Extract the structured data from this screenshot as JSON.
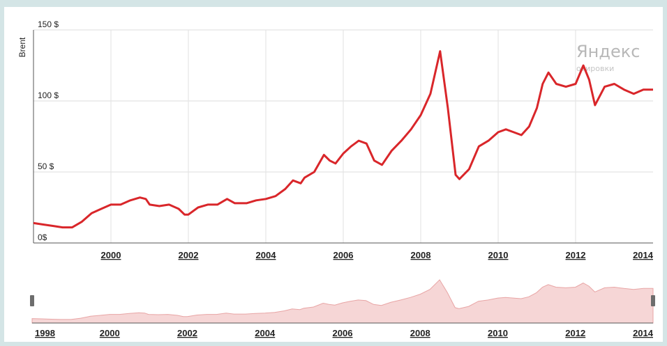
{
  "chart_data": {
    "type": "line",
    "ylabel": "Brent",
    "y_ticks": [
      "0$",
      "50 $",
      "100 $",
      "150 $"
    ],
    "y_tick_values": [
      0,
      50,
      100,
      150
    ],
    "ylim": [
      0,
      150
    ],
    "xlim": [
      1998.0,
      2014.0
    ],
    "x_ticks": [
      "2000",
      "2002",
      "2004",
      "2006",
      "2008",
      "2010",
      "2012",
      "2014"
    ],
    "x_tick_values": [
      2000,
      2002,
      2004,
      2006,
      2008,
      2010,
      2012,
      2014
    ],
    "grid": true,
    "watermark": {
      "brand": "Яндекс",
      "sub": "отировки"
    },
    "series": [
      {
        "color": "#d9262a",
        "x": [
          1998.0,
          1998.25,
          1998.5,
          1998.75,
          1999.0,
          1999.25,
          1999.5,
          1999.75,
          2000.0,
          2000.25,
          2000.5,
          2000.75,
          2000.9,
          2001.0,
          2001.25,
          2001.5,
          2001.75,
          2001.9,
          2002.0,
          2002.25,
          2002.5,
          2002.75,
          2003.0,
          2003.2,
          2003.5,
          2003.75,
          2004.0,
          2004.25,
          2004.5,
          2004.7,
          2004.9,
          2005.0,
          2005.25,
          2005.5,
          2005.65,
          2005.8,
          2006.0,
          2006.2,
          2006.4,
          2006.6,
          2006.8,
          2007.0,
          2007.25,
          2007.5,
          2007.75,
          2008.0,
          2008.25,
          2008.5,
          2008.7,
          2008.9,
          2009.0,
          2009.25,
          2009.5,
          2009.75,
          2010.0,
          2010.2,
          2010.4,
          2010.6,
          2010.8,
          2011.0,
          2011.15,
          2011.3,
          2011.5,
          2011.75,
          2012.0,
          2012.2,
          2012.35,
          2012.5,
          2012.75,
          2013.0,
          2013.25,
          2013.5,
          2013.75,
          2014.0
        ],
        "y": [
          14,
          13,
          12,
          11,
          11,
          15,
          21,
          24,
          27,
          27,
          30,
          32,
          31,
          27,
          26,
          27,
          24,
          20,
          20,
          25,
          27,
          27,
          31,
          28,
          28,
          30,
          31,
          33,
          38,
          44,
          42,
          46,
          50,
          62,
          58,
          56,
          63,
          68,
          72,
          70,
          58,
          55,
          65,
          72,
          80,
          90,
          105,
          135,
          95,
          48,
          45,
          52,
          68,
          72,
          78,
          80,
          78,
          76,
          82,
          95,
          112,
          120,
          112,
          110,
          112,
          125,
          115,
          97,
          110,
          112,
          108,
          105,
          108,
          108
        ]
      }
    ],
    "navigator": {
      "x_ticks": [
        "1998",
        "2000",
        "2002",
        "2004",
        "2006",
        "2008",
        "2010",
        "2012",
        "2014"
      ],
      "x_tick_values": [
        1998,
        2000,
        2002,
        2004,
        2006,
        2008,
        2010,
        2012,
        2014
      ]
    }
  }
}
